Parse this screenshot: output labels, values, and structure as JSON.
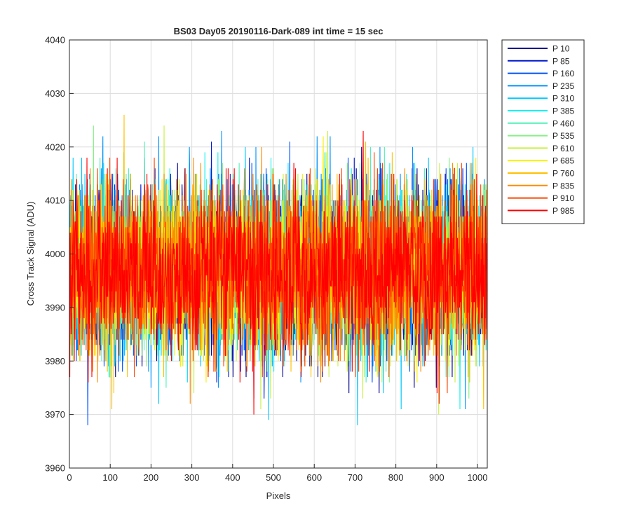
{
  "chart_data": {
    "type": "line",
    "title": "BS03 Day05 20190116-Dark-089 int time = 15 sec",
    "xlabel": "Pixels",
    "ylabel": "Cross Track Signal (ADU)",
    "xlim": [
      0,
      1024
    ],
    "ylim": [
      3960,
      4040
    ],
    "xticks": [
      0,
      100,
      200,
      300,
      400,
      500,
      600,
      700,
      800,
      900,
      1000
    ],
    "yticks": [
      3960,
      3970,
      3980,
      3990,
      4000,
      4010,
      4020,
      4030,
      4040
    ],
    "grid": true,
    "legend_position": "outside-top-right",
    "num_points": 1024,
    "signal_mean": 3997,
    "signal_typical_range": [
      3978,
      4018
    ],
    "signal_extremes": [
      3966,
      4034
    ],
    "series": [
      {
        "name": "P 10",
        "color": "#00008f"
      },
      {
        "name": "P 85",
        "color": "#0018cf"
      },
      {
        "name": "P 160",
        "color": "#0050ff"
      },
      {
        "name": "P 235",
        "color": "#0094ff"
      },
      {
        "name": "P 310",
        "color": "#00c8ff"
      },
      {
        "name": "P 385",
        "color": "#18f0f0"
      },
      {
        "name": "P 460",
        "color": "#50f0b8"
      },
      {
        "name": "P 535",
        "color": "#88f088"
      },
      {
        "name": "P 610",
        "color": "#c8f040"
      },
      {
        "name": "P 685",
        "color": "#f8f000"
      },
      {
        "name": "P 760",
        "color": "#ffc000"
      },
      {
        "name": "P 835",
        "color": "#ff8c00"
      },
      {
        "name": "P 910",
        "color": "#ff4400"
      },
      {
        "name": "P 985",
        "color": "#ff0000"
      }
    ]
  }
}
